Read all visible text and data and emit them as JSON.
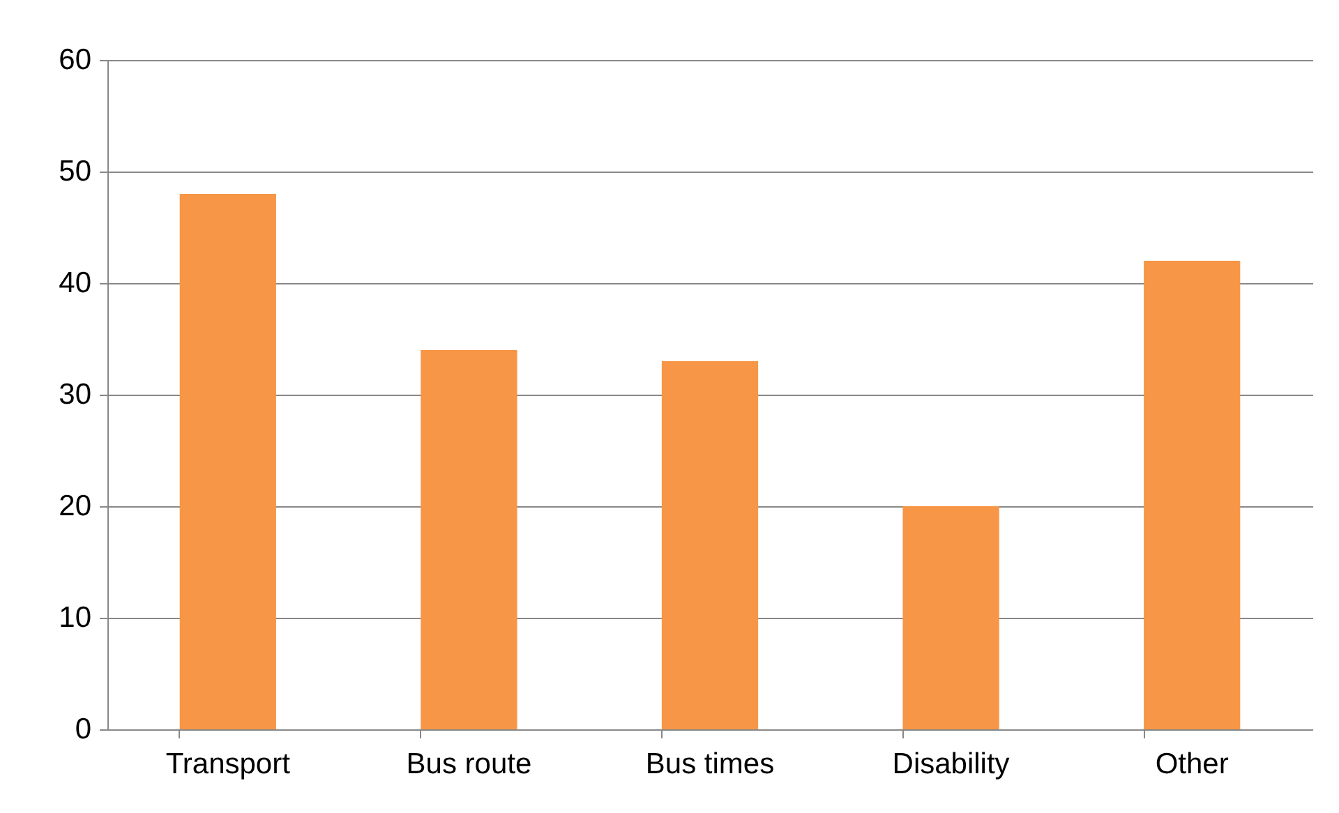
{
  "chart_data": {
    "type": "bar",
    "categories": [
      "Transport",
      "Bus route",
      "Bus times",
      "Disability",
      "Other"
    ],
    "values": [
      48,
      34,
      33,
      20,
      42
    ],
    "color": "#f79646",
    "ylim": [
      0,
      60
    ],
    "yticks": [
      0,
      10,
      20,
      30,
      40,
      50,
      60
    ],
    "grid": "y"
  }
}
